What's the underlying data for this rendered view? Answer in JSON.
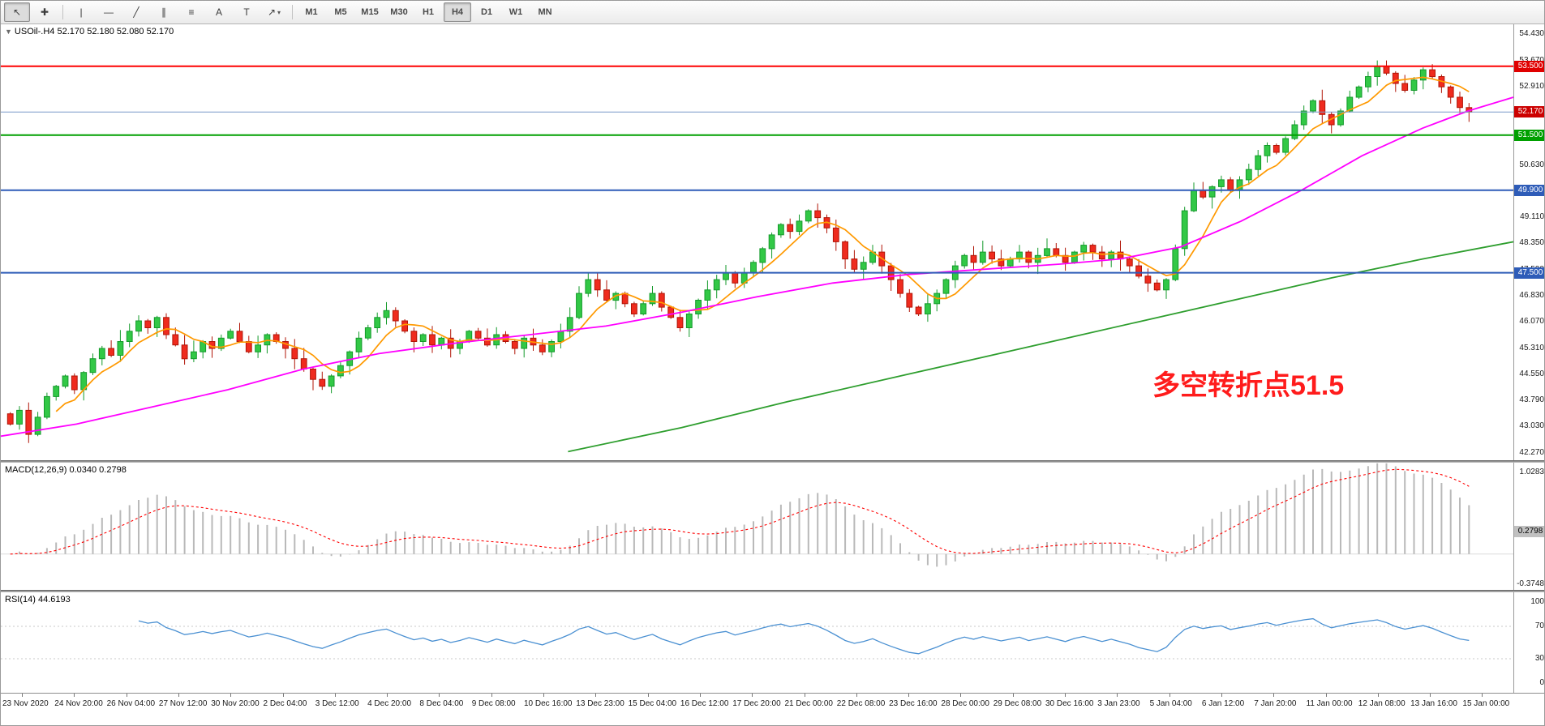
{
  "toolbar": {
    "tools": [
      {
        "name": "cursor",
        "glyph": "↖",
        "active": true
      },
      {
        "name": "crosshair",
        "glyph": "✚"
      },
      {
        "separator": true
      },
      {
        "name": "vertical-line",
        "glyph": "|"
      },
      {
        "name": "horizontal-line",
        "glyph": "—"
      },
      {
        "name": "trendline",
        "glyph": "╱"
      },
      {
        "name": "equidistant-channel",
        "glyph": "∥"
      },
      {
        "name": "fibonacci-retracement",
        "glyph": "≡"
      },
      {
        "name": "text",
        "glyph": "A"
      },
      {
        "name": "text-label",
        "glyph": "T"
      },
      {
        "name": "arrows",
        "glyph": "↗",
        "caret": true
      },
      {
        "separator": true
      }
    ],
    "timeframes": [
      {
        "label": "M1"
      },
      {
        "label": "M5"
      },
      {
        "label": "M15"
      },
      {
        "label": "M30"
      },
      {
        "label": "H1"
      },
      {
        "label": "H4",
        "active": true
      },
      {
        "label": "D1"
      },
      {
        "label": "W1"
      },
      {
        "label": "MN"
      }
    ]
  },
  "main_chart": {
    "collapse_icon": "▼",
    "symbol_label": "USOil-.H4",
    "ohlc_text": "52.170 52.180 52.080 52.170",
    "annotation": "多空转折点51.5",
    "y_ticks": [
      "54.430",
      "53.670",
      "52.910",
      "52.150",
      "51.390",
      "50.630",
      "49.870",
      "49.110",
      "48.350",
      "47.590",
      "46.830",
      "46.070",
      "45.310",
      "44.550",
      "43.790",
      "43.030",
      "42.270"
    ],
    "levels": [
      {
        "price": 53.5,
        "label": "53.500",
        "line_color": "#fe0000",
        "badge_color": "#e00000",
        "width": 2
      },
      {
        "price": 52.17,
        "label": "52.170",
        "line_color": "#7a9ac9",
        "badge_color": "#cc0000",
        "width": 1
      },
      {
        "price": 51.5,
        "label": "51.500",
        "line_color": "#00a000",
        "badge_color": "#00a000",
        "width": 2
      },
      {
        "price": 49.9,
        "label": "49.900",
        "line_color": "#2e5cb8",
        "badge_color": "#2e5cb8",
        "width": 2
      },
      {
        "price": 47.5,
        "label": "47.500",
        "line_color": "#2e5cb8",
        "badge_color": "#2e5cb8",
        "width": 2
      }
    ]
  },
  "macd_panel": {
    "label": "MACD(12,26,9) 0.0340 0.2798",
    "scale_top": "1.0283",
    "scale_current": "0.2798",
    "scale_bottom": "-0.3748"
  },
  "rsi_panel": {
    "label": "RSI(14) 44.6193",
    "scale": [
      "100",
      "70",
      "30",
      "0"
    ],
    "levels": [
      70,
      30
    ]
  },
  "time_axis": {
    "labels": [
      "23 Nov 2020",
      "24 Nov 20:00",
      "26 Nov 04:00",
      "27 Nov 12:00",
      "30 Nov 20:00",
      "2 Dec 04:00",
      "3 Dec 12:00",
      "4 Dec 20:00",
      "8 Dec 04:00",
      "9 Dec 08:00",
      "10 Dec 16:00",
      "13 Dec 23:00",
      "15 Dec 04:00",
      "16 Dec 12:00",
      "17 Dec 20:00",
      "21 Dec 00:00",
      "22 Dec 08:00",
      "23 Dec 16:00",
      "28 Dec 00:00",
      "29 Dec 08:00",
      "30 Dec 16:00",
      "3 Jan 23:00",
      "5 Jan 04:00",
      "6 Jan 12:00",
      "7 Jan 20:00",
      "11 Jan 00:00",
      "12 Jan 08:00",
      "13 Jan 16:00",
      "15 Jan 00:00"
    ]
  },
  "chart_data": {
    "type": "candlestick",
    "symbol": "USOil-",
    "timeframe": "H4",
    "current_ohlc": {
      "open": "52.170",
      "high": "52.180",
      "low": "52.080",
      "close": "52.170"
    },
    "price_range": [
      42.05,
      54.72
    ],
    "closes": [
      43.1,
      43.5,
      42.8,
      43.3,
      43.9,
      44.2,
      44.5,
      44.1,
      44.6,
      45.0,
      45.3,
      45.1,
      45.5,
      45.8,
      46.1,
      45.9,
      46.2,
      45.7,
      45.4,
      45.0,
      45.2,
      45.5,
      45.3,
      45.6,
      45.8,
      45.5,
      45.2,
      45.4,
      45.7,
      45.5,
      45.3,
      45.0,
      44.7,
      44.4,
      44.2,
      44.5,
      44.8,
      45.2,
      45.6,
      45.9,
      46.2,
      46.4,
      46.1,
      45.8,
      45.5,
      45.7,
      45.4,
      45.6,
      45.3,
      45.5,
      45.8,
      45.6,
      45.4,
      45.7,
      45.5,
      45.3,
      45.6,
      45.4,
      45.2,
      45.5,
      45.8,
      46.2,
      46.9,
      47.3,
      47.0,
      46.7,
      46.9,
      46.6,
      46.3,
      46.6,
      46.9,
      46.5,
      46.2,
      45.9,
      46.3,
      46.7,
      47.0,
      47.3,
      47.5,
      47.2,
      47.5,
      47.8,
      48.2,
      48.6,
      48.9,
      48.7,
      49.0,
      49.3,
      49.1,
      48.8,
      48.4,
      47.9,
      47.6,
      47.8,
      48.1,
      47.7,
      47.3,
      46.9,
      46.5,
      46.3,
      46.6,
      46.9,
      47.3,
      47.7,
      48.0,
      47.8,
      48.1,
      47.9,
      47.7,
      47.9,
      48.1,
      47.8,
      48.0,
      48.2,
      48.0,
      47.8,
      48.1,
      48.3,
      48.1,
      47.9,
      48.1,
      47.9,
      47.7,
      47.4,
      47.2,
      47.0,
      47.3,
      48.2,
      49.3,
      49.9,
      49.7,
      50.0,
      50.2,
      49.9,
      50.2,
      50.5,
      50.9,
      51.2,
      51.0,
      51.4,
      51.8,
      52.2,
      52.5,
      52.1,
      51.8,
      52.2,
      52.6,
      52.9,
      53.2,
      53.5,
      53.3,
      53.0,
      52.8,
      53.1,
      53.4,
      53.2,
      52.9,
      52.6,
      52.3,
      52.17
    ],
    "ma_fast_period": 6,
    "ma_mid_points": [
      [
        0.0,
        42.75
      ],
      [
        0.05,
        43.1
      ],
      [
        0.1,
        43.6
      ],
      [
        0.15,
        44.1
      ],
      [
        0.2,
        44.7
      ],
      [
        0.25,
        45.15
      ],
      [
        0.3,
        45.45
      ],
      [
        0.35,
        45.7
      ],
      [
        0.4,
        45.95
      ],
      [
        0.45,
        46.35
      ],
      [
        0.5,
        46.8
      ],
      [
        0.55,
        47.2
      ],
      [
        0.6,
        47.45
      ],
      [
        0.65,
        47.6
      ],
      [
        0.7,
        47.75
      ],
      [
        0.74,
        47.9
      ],
      [
        0.78,
        48.25
      ],
      [
        0.82,
        49.0
      ],
      [
        0.86,
        49.9
      ],
      [
        0.9,
        50.9
      ],
      [
        0.94,
        51.7
      ],
      [
        0.97,
        52.2
      ],
      [
        1.0,
        52.6
      ]
    ],
    "ma_slow_points": [
      [
        0.375,
        42.3
      ],
      [
        0.45,
        43.0
      ],
      [
        0.52,
        43.75
      ],
      [
        0.6,
        44.55
      ],
      [
        0.68,
        45.35
      ],
      [
        0.75,
        46.05
      ],
      [
        0.82,
        46.75
      ],
      [
        0.88,
        47.35
      ],
      [
        0.94,
        47.9
      ],
      [
        1.0,
        48.4
      ]
    ],
    "colors": {
      "up": "#32c846",
      "up_edge": "#139a2a",
      "down": "#ef2b1e",
      "down_edge": "#b01507",
      "ma_fast": "#ff9900",
      "ma_mid": "#ff00ff",
      "ma_slow": "#2e9e2e",
      "macd_histogram": "#b9b9b9",
      "macd_signal": "#ff0000",
      "rsi_line": "#4a90d2"
    },
    "indicators": {
      "macd": {
        "fast": 12,
        "slow": 26,
        "signal": 9,
        "value": 0.034,
        "signal_value": 0.2798,
        "scale_max": 1.0283,
        "scale_min": -0.3748
      },
      "rsi": {
        "period": 14,
        "value": 44.6193,
        "levels": [
          70,
          30
        ]
      }
    }
  }
}
